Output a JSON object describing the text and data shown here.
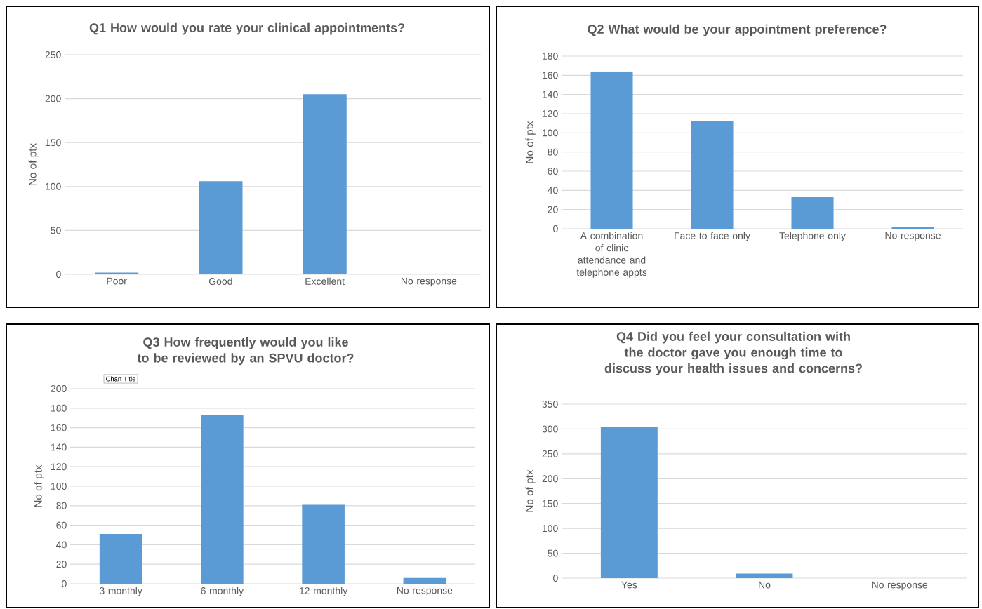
{
  "chart_data": [
    {
      "type": "bar",
      "title": "Q1 How would you rate your clinical appointments?",
      "ylabel": "No of ptx",
      "categories": [
        "Poor",
        "Good",
        "Excellent",
        "No response"
      ],
      "values": [
        2,
        106,
        205,
        0
      ],
      "color": "#5b9bd5",
      "ylim": [
        0,
        250
      ],
      "yticks": [
        0,
        50,
        100,
        150,
        200,
        250
      ],
      "grid": "y"
    },
    {
      "type": "bar",
      "title": "Q2 What would be your appointment preference?",
      "ylabel": "No of ptx",
      "categories": [
        "A combination of clinic attendance and telephone appts",
        "Face to face only",
        "Telephone only",
        "No response"
      ],
      "values": [
        164,
        112,
        33,
        2
      ],
      "color": "#5b9bd5",
      "ylim": [
        0,
        180
      ],
      "yticks": [
        0,
        20,
        40,
        60,
        80,
        100,
        120,
        140,
        160,
        180
      ],
      "grid": "y"
    },
    {
      "type": "bar",
      "title": "Q3 How frequently would you like to be reviewed by an SPVU doctor?",
      "ylabel": "No of ptx",
      "categories": [
        "3 monthly",
        "6 monthly",
        "12 monthly",
        "No response"
      ],
      "values": [
        51,
        173,
        81,
        6
      ],
      "color": "#5b9bd5",
      "ylim": [
        0,
        200
      ],
      "yticks": [
        0,
        20,
        40,
        60,
        80,
        100,
        120,
        140,
        160,
        180,
        200
      ],
      "grid": "y",
      "annotations": [
        "Chart Title"
      ]
    },
    {
      "type": "bar",
      "title": "Q4 Did you feel your consultation with the doctor gave you enough time to discuss your health issues and concerns?",
      "ylabel": "No of ptx",
      "categories": [
        "Yes",
        "No",
        "No response"
      ],
      "values": [
        305,
        9,
        0
      ],
      "color": "#5b9bd5",
      "ylim": [
        0,
        350
      ],
      "yticks": [
        0,
        50,
        100,
        150,
        200,
        250,
        300,
        350
      ],
      "grid": "y"
    }
  ]
}
